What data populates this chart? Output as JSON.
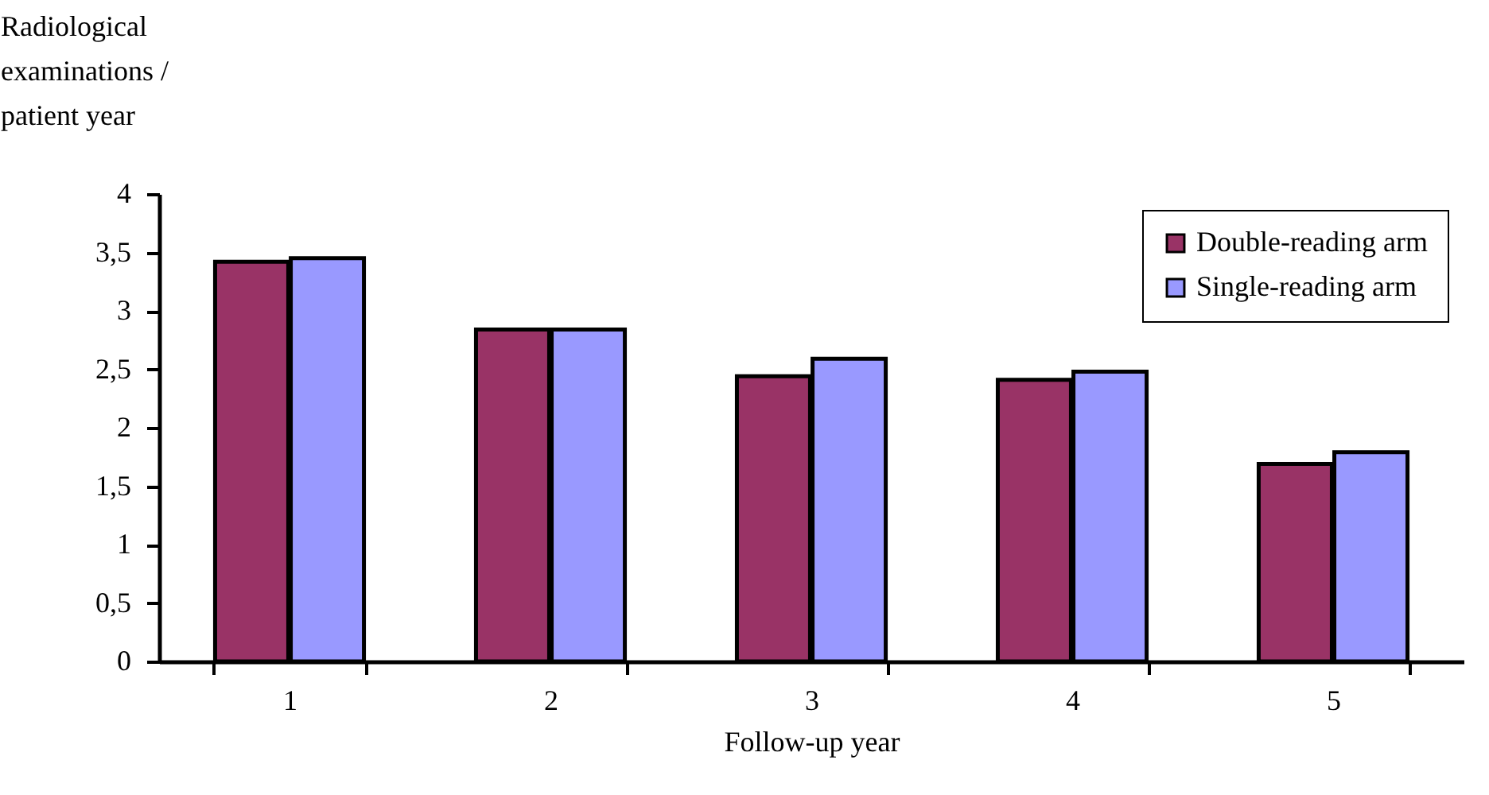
{
  "chart_data": {
    "type": "bar",
    "xlabel": "Follow-up year",
    "ylabel": "Radiological\nexaminations /\npatient year",
    "categories": [
      "1",
      "2",
      "3",
      "4",
      "5"
    ],
    "series": [
      {
        "name": "Double-reading arm",
        "color": "#993366",
        "values": [
          3.42,
          2.84,
          2.44,
          2.41,
          1.69
        ]
      },
      {
        "name": "Single-reading arm",
        "color": "#9999ff",
        "values": [
          3.45,
          2.84,
          2.59,
          2.48,
          1.79
        ]
      }
    ],
    "ylim": [
      0,
      4
    ],
    "yticks": [
      0,
      {
        "value": 0.5,
        "label": "0,5"
      },
      1,
      {
        "value": 1.5,
        "label": "1,5"
      },
      2,
      {
        "value": 2.5,
        "label": "2,5"
      },
      3,
      {
        "value": 3.5,
        "label": "3,5"
      },
      4
    ],
    "grid": false,
    "legend": "top right"
  }
}
